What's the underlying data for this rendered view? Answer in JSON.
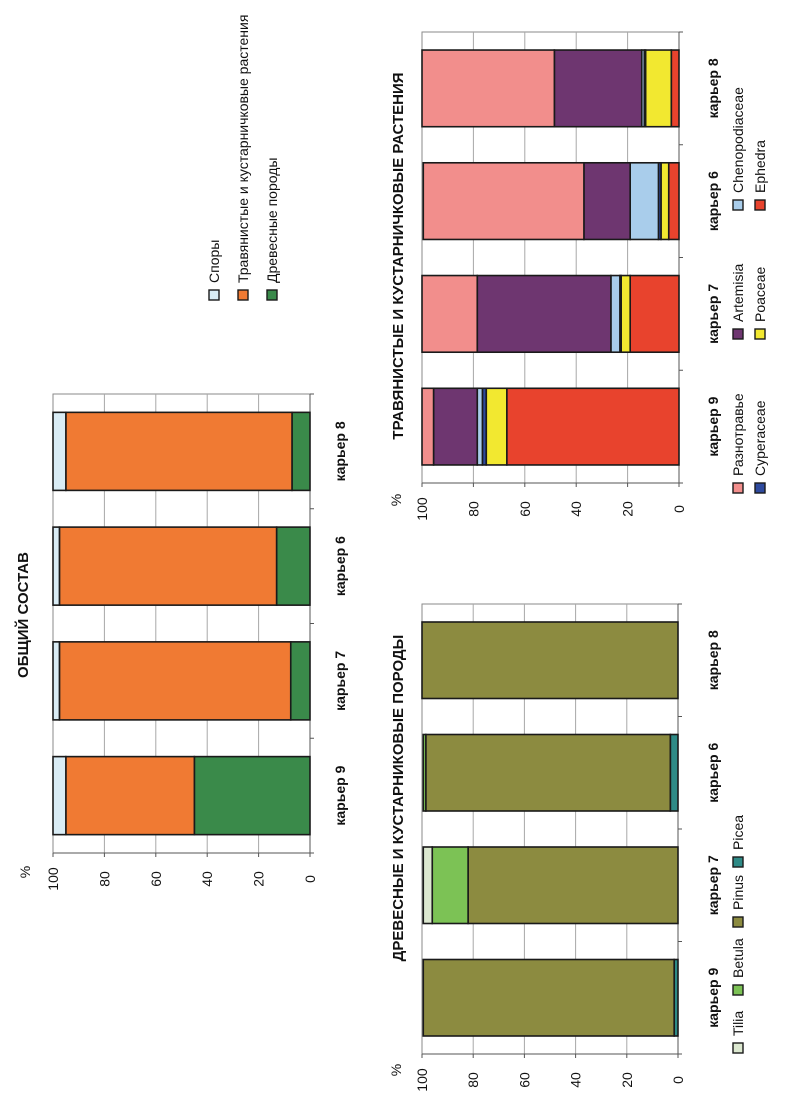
{
  "chart_data": [
    {
      "id": "general",
      "type": "bar",
      "stacked": true,
      "orientation": "rotated-90",
      "title": "ОБЩИЙ СОСТАВ",
      "ylabel": "%",
      "ylim": [
        0,
        100
      ],
      "yticks": [
        "0",
        "20",
        "40",
        "60",
        "80",
        "100"
      ],
      "grid": true,
      "categories": [
        "карьер 9",
        "карьер 7",
        "карьер 6",
        "карьер 8"
      ],
      "series": [
        {
          "name": "Древесные  породы",
          "color": "#3A8A4A",
          "values": [
            45,
            7.5,
            13,
            7
          ]
        },
        {
          "name": "Травянистые и кустарничковые растения",
          "color": "#F07A33",
          "values": [
            50,
            90,
            84.5,
            88
          ]
        },
        {
          "name": "Споры",
          "color": "#D9ECF5",
          "values": [
            5,
            2.5,
            2.5,
            5
          ]
        }
      ],
      "legend": {
        "placement": "right",
        "items": [
          "Споры",
          "Травянистые и кустарничковые растения",
          "Древесные  породы"
        ]
      }
    },
    {
      "id": "herbs",
      "type": "bar",
      "stacked": true,
      "orientation": "rotated-90",
      "title": "ТРАВЯНИСТЫЕ И КУСТАРНИЧКОВЫЕ РАСТЕНИЯ",
      "ylabel": "%",
      "ylim": [
        0,
        100
      ],
      "yticks": [
        "0",
        "20",
        "40",
        "60",
        "80",
        "100"
      ],
      "grid": true,
      "categories": [
        "карьер 9",
        "карьер 7",
        "карьер 6",
        "карьер 8"
      ],
      "series": [
        {
          "name": "Ephedra",
          "color": "#E8432D",
          "values": [
            67,
            19,
            4,
            3
          ]
        },
        {
          "name": "Poaceae",
          "color": "#F2E830",
          "values": [
            8,
            3.5,
            3,
            10
          ]
        },
        {
          "name": "Cyperaceae",
          "color": "#2E4A9E",
          "values": [
            1.5,
            0.5,
            1,
            0.5
          ]
        },
        {
          "name": "Chenopodiaceae",
          "color": "#A9CDEB",
          "values": [
            2,
            3.5,
            11,
            1
          ]
        },
        {
          "name": "Artemisia",
          "color": "#6E3670",
          "values": [
            17,
            52,
            18,
            34
          ]
        },
        {
          "name": "Разнотравье",
          "color": "#F28E8C",
          "values": [
            4.5,
            21.5,
            62.5,
            51.5
          ]
        }
      ],
      "legend": {
        "placement": "bottom",
        "items": [
          "Разнотравье",
          "Artemisia",
          "Chenopodiaceae",
          "Cyperaceae",
          "Poaceae",
          "Ephedra"
        ]
      }
    },
    {
      "id": "trees",
      "type": "bar",
      "stacked": true,
      "orientation": "rotated-90",
      "title": "ДРЕВЕСНЫЕ И КУСТАРНИКОВЫЕ ПОРОДЫ",
      "ylabel": "%",
      "ylim": [
        0,
        100
      ],
      "yticks": [
        "0",
        "20",
        "40",
        "60",
        "80",
        "100"
      ],
      "grid": true,
      "categories": [
        "карьер 9",
        "карьер 7",
        "карьер 6",
        "карьер 8"
      ],
      "series": [
        {
          "name": "Picea",
          "color": "#2E8A86",
          "values": [
            1.5,
            0,
            3,
            0
          ]
        },
        {
          "name": "Pinus",
          "color": "#8C8B40",
          "values": [
            98,
            82,
            95.5,
            100
          ]
        },
        {
          "name": "Betula",
          "color": "#7CC255",
          "values": [
            0,
            14,
            1,
            0
          ]
        },
        {
          "name": "Tilia",
          "color": "#DCE8D0",
          "values": [
            0,
            3.5,
            0,
            0
          ]
        }
      ],
      "legend": {
        "placement": "bottom",
        "items": [
          "Tilia",
          "Betula",
          "Pinus",
          "Picea"
        ]
      }
    }
  ]
}
